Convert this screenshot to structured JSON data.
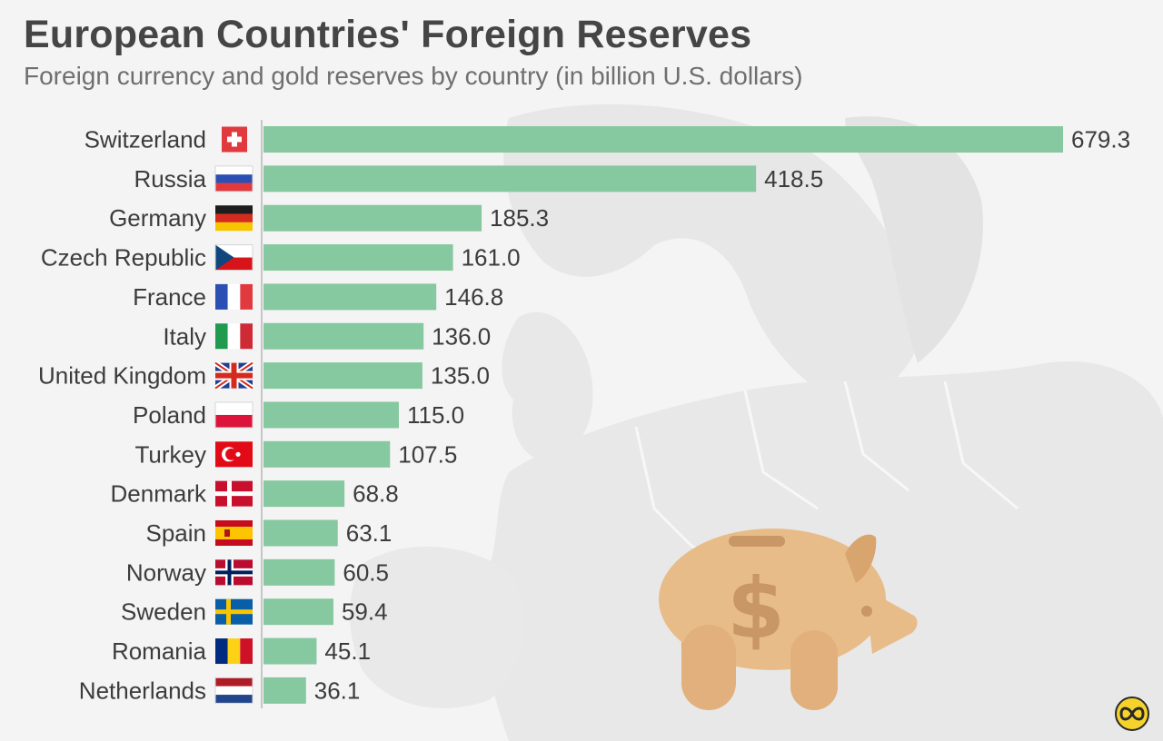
{
  "title": "European Countries' Foreign Reserves",
  "subtitle": "Foreign currency and gold reserves by country (in billion U.S. dollars)",
  "chart_data": {
    "type": "bar",
    "orientation": "horizontal",
    "title": "European Countries' Foreign Reserves",
    "subtitle": "Foreign currency and gold reserves by country (in billion U.S. dollars)",
    "xlabel": "",
    "ylabel": "",
    "xlim": [
      0,
      679.3
    ],
    "grid": false,
    "legend": "none",
    "bar_color": "#86c89f",
    "categories": [
      "Switzerland",
      "Russia",
      "Germany",
      "Czech Republic",
      "France",
      "Italy",
      "United Kingdom",
      "Poland",
      "Turkey",
      "Denmark",
      "Spain",
      "Norway",
      "Sweden",
      "Romania",
      "Netherlands"
    ],
    "values": [
      679.3,
      418.5,
      185.3,
      161.0,
      146.8,
      136.0,
      135.0,
      115.0,
      107.5,
      68.8,
      63.1,
      60.5,
      59.4,
      45.1,
      36.1
    ],
    "value_labels": [
      "679.3",
      "418.5",
      "185.3",
      "161.0",
      "146.8",
      "136.0",
      "135.0",
      "115.0",
      "107.5",
      "68.8",
      "63.1",
      "60.5",
      "59.4",
      "45.1",
      "36.1"
    ]
  },
  "flags": [
    "switzerland-flag",
    "russia-flag",
    "germany-flag",
    "czech-republic-flag",
    "france-flag",
    "italy-flag",
    "united-kingdom-flag",
    "poland-flag",
    "turkey-flag",
    "denmark-flag",
    "spain-flag",
    "norway-flag",
    "sweden-flag",
    "romania-flag",
    "netherlands-flag"
  ],
  "icons": {
    "illustration": "piggy-bank-dollar-icon",
    "logo": "infinity-logo-icon"
  },
  "colors": {
    "bar": "#86c89f",
    "title": "#454545",
    "subtitle": "#6f6f6f",
    "map": "#e6e6e6",
    "piggy": "#e8bc88",
    "logo": "#f5d32a"
  }
}
